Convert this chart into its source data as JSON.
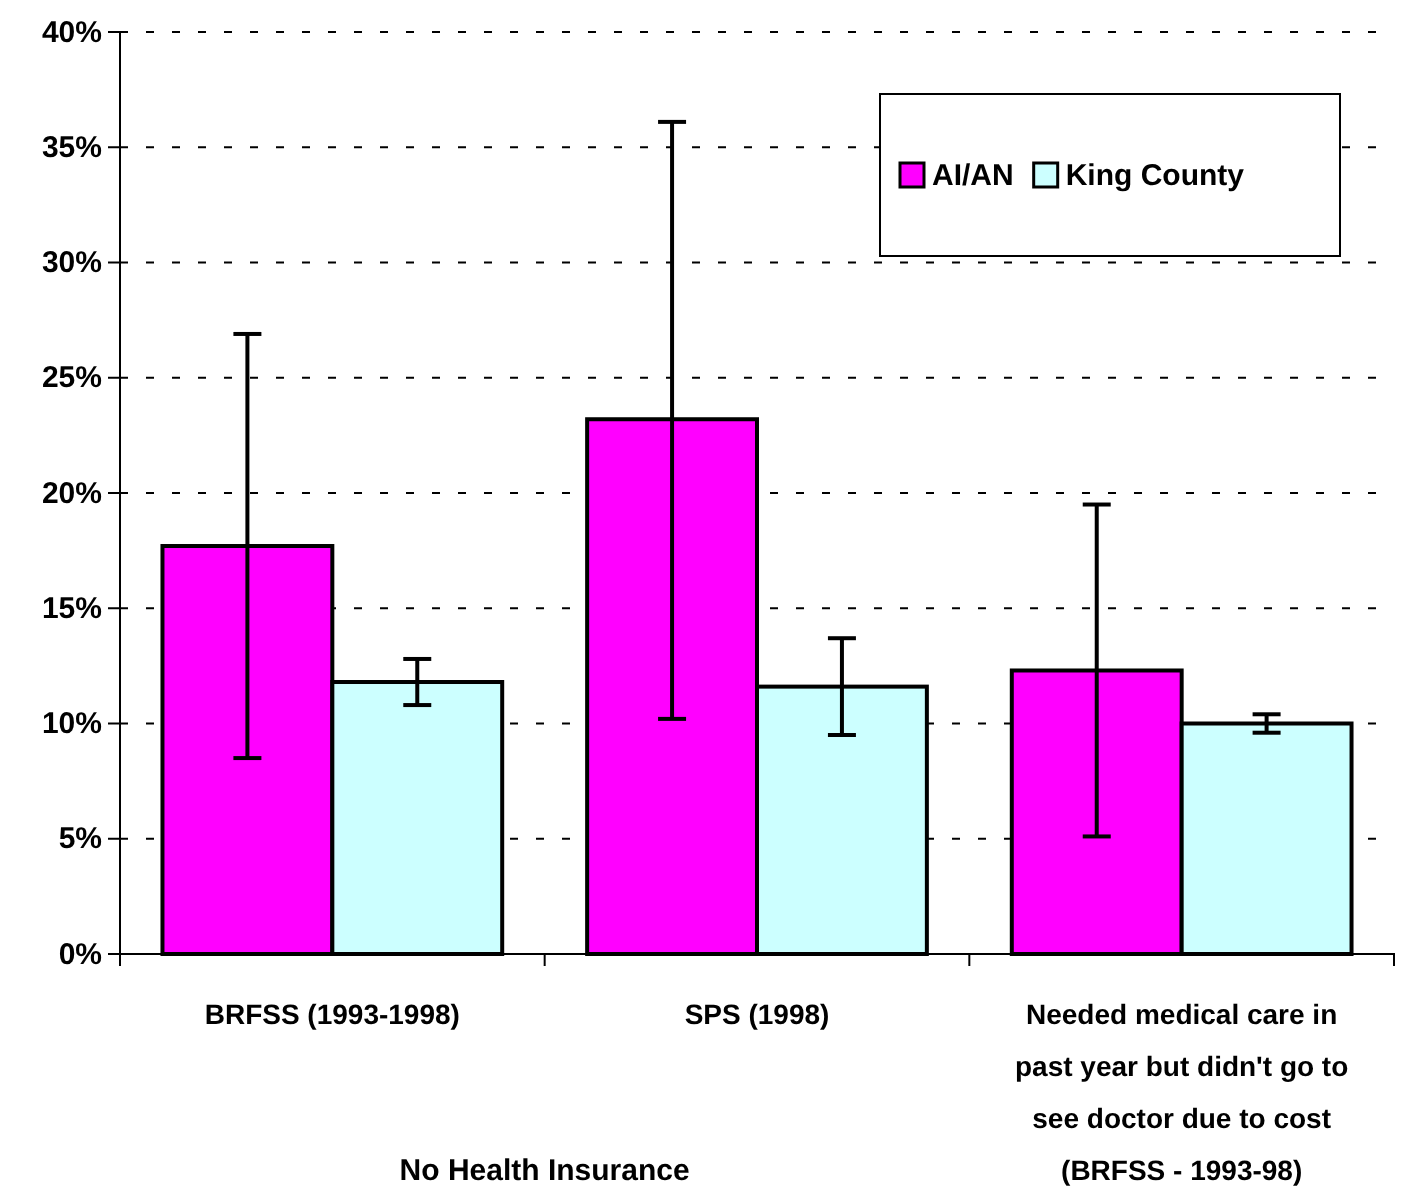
{
  "chart_data": {
    "type": "bar",
    "categories": [
      "BRFSS (1993-1998)",
      "SPS (1998)",
      "Needed medical care in past year but didn't go to see doctor due to cost (BRFSS - 1993-98)"
    ],
    "series": [
      {
        "name": "AI/AN",
        "color": "#ff00ff",
        "values": [
          17.7,
          23.2,
          12.3
        ],
        "errors": [
          [
            8.5,
            26.9
          ],
          [
            10.2,
            36.1
          ],
          [
            5.1,
            19.5
          ]
        ]
      },
      {
        "name": "King County",
        "color": "#ccffff",
        "values": [
          11.8,
          11.6,
          10.0
        ],
        "errors": [
          [
            10.8,
            12.8
          ],
          [
            9.5,
            13.7
          ],
          [
            9.6,
            10.4
          ]
        ]
      }
    ],
    "ylim": [
      0,
      40
    ],
    "yticks": [
      {
        "value": 0,
        "label": "0%"
      },
      {
        "value": 5,
        "label": "5%"
      },
      {
        "value": 10,
        "label": "10%"
      },
      {
        "value": 15,
        "label": "15%"
      },
      {
        "value": 20,
        "label": "20%"
      },
      {
        "value": 25,
        "label": "25%"
      },
      {
        "value": 30,
        "label": "30%"
      },
      {
        "value": 35,
        "label": "35%"
      },
      {
        "value": 40,
        "label": "40%"
      }
    ],
    "grid": "y",
    "legend": "top right",
    "annotations": [
      "No Health Insurance"
    ]
  }
}
